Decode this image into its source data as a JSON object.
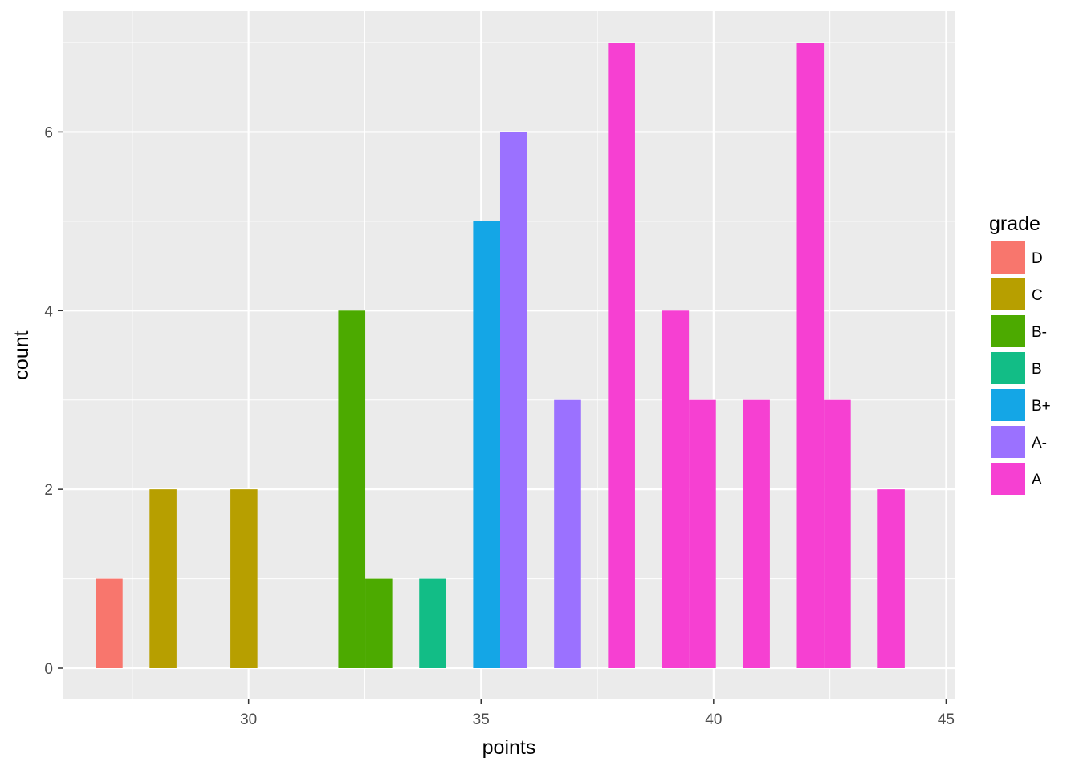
{
  "chart_data": {
    "type": "bar",
    "subtype": "histogram",
    "title": "",
    "xlabel": "points",
    "ylabel": "count",
    "xlim": [
      26.0,
      45.2
    ],
    "ylim": [
      -0.35,
      7.35
    ],
    "bin_width": 0.58,
    "x_ticks": [
      30,
      35,
      40,
      45
    ],
    "y_ticks": [
      0,
      2,
      4,
      6
    ],
    "grid": true,
    "legend": {
      "title": "grade",
      "position": "right"
    },
    "series": [
      {
        "name": "D",
        "color": "#F8766D",
        "bins": [
          {
            "x": 27.0,
            "count": 1
          }
        ]
      },
      {
        "name": "C",
        "color": "#B79F00",
        "bins": [
          {
            "x": 28.16,
            "count": 2
          },
          {
            "x": 29.9,
            "count": 2
          }
        ]
      },
      {
        "name": "B-",
        "color": "#4CAA00",
        "bins": [
          {
            "x": 32.22,
            "count": 4
          },
          {
            "x": 32.8,
            "count": 1
          }
        ]
      },
      {
        "name": "B",
        "color": "#12BD86",
        "bins": [
          {
            "x": 33.96,
            "count": 1
          }
        ]
      },
      {
        "name": "B+",
        "color": "#14A6E6",
        "bins": [
          {
            "x": 35.12,
            "count": 5
          }
        ]
      },
      {
        "name": "A-",
        "color": "#9B71FF",
        "bins": [
          {
            "x": 35.7,
            "count": 6
          },
          {
            "x": 36.86,
            "count": 3
          }
        ]
      },
      {
        "name": "A",
        "color": "#F640D2",
        "bins": [
          {
            "x": 38.02,
            "count": 7
          },
          {
            "x": 39.18,
            "count": 4
          },
          {
            "x": 39.76,
            "count": 3
          },
          {
            "x": 40.92,
            "count": 3
          },
          {
            "x": 42.08,
            "count": 7
          },
          {
            "x": 42.66,
            "count": 3
          },
          {
            "x": 43.82,
            "count": 2
          }
        ]
      }
    ]
  }
}
